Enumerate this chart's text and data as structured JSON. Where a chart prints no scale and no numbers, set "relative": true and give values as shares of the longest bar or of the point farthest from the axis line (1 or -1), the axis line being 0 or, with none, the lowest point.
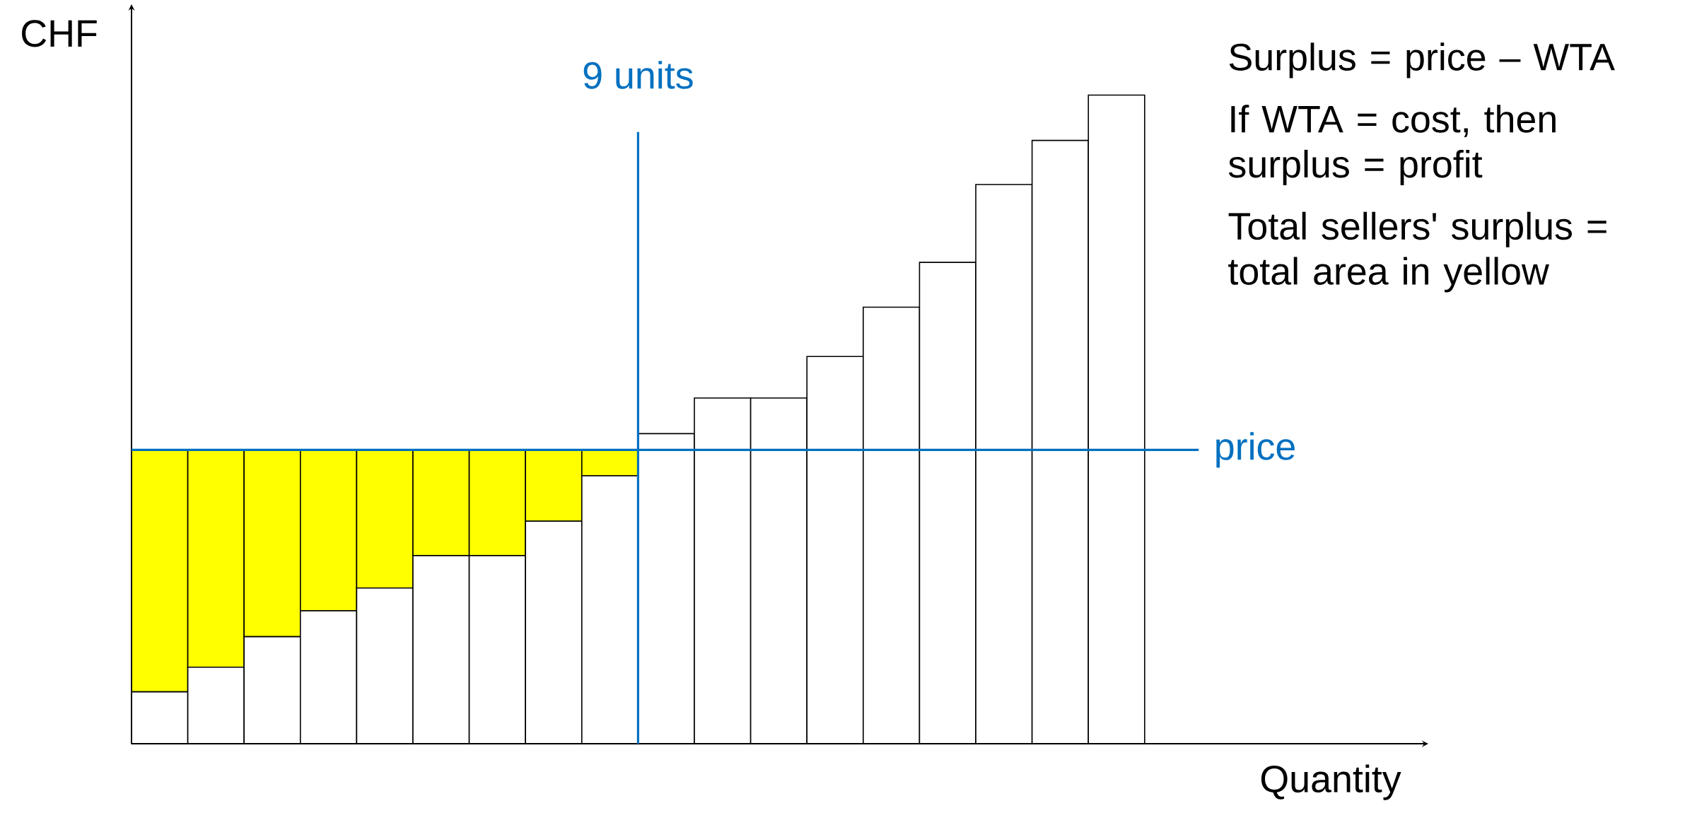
{
  "chart_data": {
    "type": "bar",
    "relative": true,
    "stacked": true,
    "xlabel": "Quantity",
    "ylabel": "CHF",
    "categories": [
      null,
      null,
      null,
      null,
      null,
      null,
      null,
      null,
      null,
      null,
      null,
      null,
      null,
      null,
      null,
      null,
      null,
      null
    ],
    "series": [
      {
        "color": "#ffffff",
        "values": [
          0.08,
          0.118,
          0.165,
          0.205,
          0.24,
          0.29,
          0.29,
          0.343,
          0.413,
          0.478,
          0.533,
          0.533,
          0.597,
          0.673,
          0.742,
          0.862,
          0.93,
          1.0
        ]
      },
      {
        "color": "#ffff00",
        "values": [
          0.373,
          0.335,
          0.288,
          0.248,
          0.213,
          0.163,
          0.163,
          0.11,
          0.04,
          null,
          null,
          null,
          null,
          null,
          null,
          null,
          null,
          null
        ]
      }
    ],
    "ref_lines": [
      {
        "axis": "y",
        "value": 0.453,
        "label": "price",
        "color": "#0070c0"
      }
    ],
    "annotations": [
      "9 units",
      "Surplus = price – WTA",
      "If WTA = cost, then surplus = profit",
      "Total sellers' surplus = total area in yellow"
    ]
  }
}
